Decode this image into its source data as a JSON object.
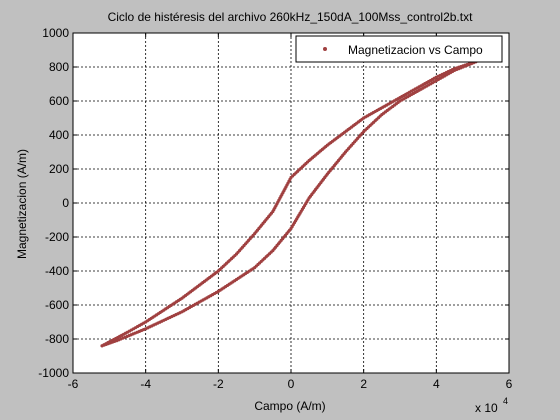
{
  "chart_data": {
    "type": "scatter",
    "title": "Ciclo de histéresis del archivo 260kHz_150dA_100Mss_control2b.txt",
    "xlabel": "Campo (A/m)",
    "ylabel": "Magnetizacion (A/m)",
    "x_multiplier_label": "x 10",
    "x_multiplier_exponent": "4",
    "xlim": [
      -6,
      6
    ],
    "ylim": [
      -1000,
      1000
    ],
    "x_ticks": [
      -6,
      -4,
      -2,
      0,
      2,
      4,
      6
    ],
    "y_ticks": [
      -1000,
      -800,
      -600,
      -400,
      -200,
      0,
      200,
      400,
      600,
      800,
      1000
    ],
    "grid": true,
    "legend_position": "top-right",
    "series": [
      {
        "name": "Magnetizacion vs Campo",
        "color": "#a04040",
        "marker": "dot",
        "branches": [
          {
            "points": [
              [
                -5.2,
                -840
              ],
              [
                -4.5,
                -760
              ],
              [
                -4.0,
                -700
              ],
              [
                -3.0,
                -560
              ],
              [
                -2.0,
                -400
              ],
              [
                -1.5,
                -300
              ],
              [
                -1.0,
                -180
              ],
              [
                -0.5,
                -50
              ],
              [
                0,
                150
              ],
              [
                0.5,
                250
              ],
              [
                1.0,
                340
              ],
              [
                2.0,
                500
              ],
              [
                3.0,
                620
              ],
              [
                4.0,
                740
              ],
              [
                4.5,
                790
              ],
              [
                5.2,
                840
              ]
            ]
          },
          {
            "points": [
              [
                5.2,
                840
              ],
              [
                4.5,
                780
              ],
              [
                4.0,
                720
              ],
              [
                3.0,
                600
              ],
              [
                2.5,
                520
              ],
              [
                2.0,
                420
              ],
              [
                1.5,
                300
              ],
              [
                1.0,
                170
              ],
              [
                0.5,
                30
              ],
              [
                0,
                -150
              ],
              [
                -0.5,
                -280
              ],
              [
                -1.0,
                -380
              ],
              [
                -2.0,
                -520
              ],
              [
                -3.0,
                -640
              ],
              [
                -4.0,
                -740
              ],
              [
                -4.8,
                -810
              ],
              [
                -5.2,
                -840
              ]
            ]
          }
        ]
      }
    ]
  }
}
